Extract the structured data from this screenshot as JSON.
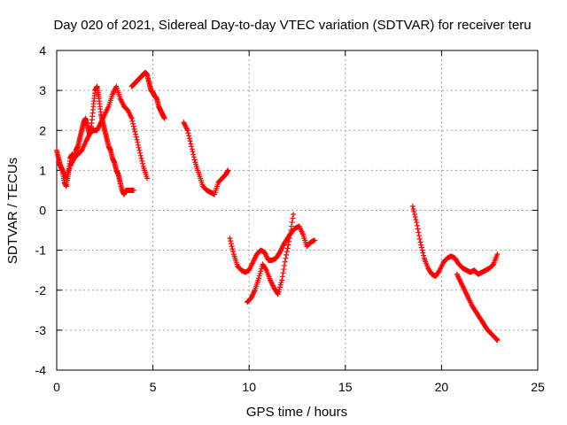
{
  "chart_data": {
    "type": "scatter",
    "title": "Day 020 of 2021, Sidereal Day-to-day VTEC variation (SDTVAR) for receiver teru",
    "xlabel": "GPS time / hours",
    "ylabel": "SDTVAR / TECUs",
    "xlim": [
      0,
      25
    ],
    "ylim": [
      -4,
      4
    ],
    "xticks": [
      0,
      5,
      10,
      15,
      20,
      25
    ],
    "yticks": [
      -4,
      -3,
      -2,
      -1,
      0,
      1,
      2,
      3,
      4
    ],
    "xtick_labels": [
      "0",
      "5",
      "10",
      "15",
      "20",
      "25"
    ],
    "ytick_labels": [
      "-4",
      "-3",
      "-2",
      "-1",
      "0",
      "1",
      "2",
      "3",
      "4"
    ],
    "grid": true,
    "marker": "+",
    "color": "#ff0000",
    "series": [
      {
        "name": "track-1",
        "x": [
          0.0,
          0.1,
          0.2,
          0.3,
          0.4,
          0.5,
          0.6,
          0.7,
          0.8,
          0.9,
          1.0,
          1.1,
          1.2,
          1.3,
          1.4,
          1.5,
          1.6,
          1.7,
          1.8,
          1.9,
          2.0,
          2.1,
          2.2,
          2.3,
          2.4,
          2.5,
          2.6,
          2.7,
          2.8,
          2.9,
          3.0,
          3.1,
          3.2,
          3.3,
          3.4,
          3.5,
          3.6,
          3.7,
          3.8,
          3.9,
          4.0
        ],
        "y": [
          1.5,
          1.3,
          1.1,
          1.0,
          0.7,
          0.6,
          0.9,
          1.3,
          1.4,
          1.3,
          1.5,
          1.6,
          1.8,
          2.0,
          2.2,
          2.3,
          2.1,
          1.9,
          2.1,
          2.6,
          3.0,
          3.1,
          2.8,
          2.4,
          2.2,
          2.0,
          1.8,
          1.6,
          1.5,
          1.3,
          1.2,
          1.0,
          0.9,
          0.7,
          0.5,
          0.4,
          0.5,
          0.5,
          0.5,
          0.5,
          0.5
        ]
      },
      {
        "name": "track-2",
        "x": [
          0.1,
          0.3,
          0.5,
          0.7,
          0.9,
          1.1,
          1.3,
          1.5,
          1.7,
          1.9,
          2.1,
          2.3,
          2.5,
          2.7,
          2.9,
          3.1,
          3.3,
          3.5,
          3.7,
          3.9,
          4.1,
          4.3,
          4.5,
          4.7
        ],
        "y": [
          1.2,
          1.0,
          0.8,
          1.1,
          1.3,
          1.4,
          1.5,
          1.7,
          1.9,
          2.0,
          2.0,
          2.2,
          2.4,
          2.6,
          2.9,
          3.1,
          2.8,
          2.6,
          2.5,
          2.3,
          1.9,
          1.5,
          1.1,
          0.8
        ]
      },
      {
        "name": "track-3",
        "x": [
          3.9,
          4.0,
          4.1,
          4.2,
          4.3,
          4.4,
          4.5,
          4.6,
          4.7,
          4.8,
          4.9,
          5.0,
          5.1,
          5.2,
          5.3,
          5.4,
          5.5,
          5.6
        ],
        "y": [
          3.1,
          3.15,
          3.2,
          3.25,
          3.3,
          3.35,
          3.4,
          3.45,
          3.4,
          3.2,
          3.0,
          2.95,
          2.85,
          2.8,
          2.6,
          2.5,
          2.4,
          2.3
        ]
      },
      {
        "name": "track-4",
        "x": [
          6.6,
          6.8,
          7.0,
          7.2,
          7.4,
          7.6,
          7.8,
          8.0,
          8.2,
          8.4,
          8.6,
          8.8,
          8.9
        ],
        "y": [
          2.2,
          2.0,
          1.6,
          1.2,
          0.9,
          0.6,
          0.5,
          0.45,
          0.4,
          0.7,
          0.8,
          0.9,
          1.0
        ]
      },
      {
        "name": "track-5",
        "x": [
          9.0,
          9.2,
          9.4,
          9.6,
          9.8,
          10.0,
          10.2,
          10.4,
          10.6,
          10.8,
          11.0,
          11.2,
          11.4,
          11.6,
          11.8,
          12.0,
          12.2,
          12.4,
          12.6,
          12.8,
          13.0,
          13.2,
          13.4
        ],
        "y": [
          -0.7,
          -1.1,
          -1.4,
          -1.5,
          -1.55,
          -1.5,
          -1.3,
          -1.1,
          -1.0,
          -1.05,
          -1.25,
          -1.25,
          -1.2,
          -1.05,
          -0.85,
          -0.7,
          -0.55,
          -0.45,
          -0.4,
          -0.6,
          -0.9,
          -0.8,
          -0.75
        ]
      },
      {
        "name": "track-6",
        "x": [
          9.9,
          10.1,
          10.3,
          10.5,
          10.7,
          10.9,
          11.1,
          11.3,
          11.5,
          11.7,
          11.9,
          12.1,
          12.3
        ],
        "y": [
          -2.3,
          -2.2,
          -2.0,
          -1.7,
          -1.35,
          -1.5,
          -1.75,
          -1.95,
          -2.1,
          -1.75,
          -1.2,
          -0.7,
          -0.1
        ]
      },
      {
        "name": "track-7",
        "x": [
          18.5,
          18.7,
          18.9,
          19.1,
          19.3,
          19.5,
          19.7,
          19.9,
          20.1,
          20.3,
          20.5,
          20.7,
          20.9,
          21.1,
          21.3,
          21.5,
          21.7,
          21.9,
          22.1,
          22.3,
          22.5,
          22.7,
          22.9
        ],
        "y": [
          0.1,
          -0.3,
          -0.8,
          -1.2,
          -1.45,
          -1.6,
          -1.65,
          -1.5,
          -1.3,
          -1.2,
          -1.15,
          -1.2,
          -1.35,
          -1.45,
          -1.5,
          -1.55,
          -1.5,
          -1.6,
          -1.55,
          -1.5,
          -1.45,
          -1.35,
          -1.1
        ]
      },
      {
        "name": "track-8",
        "x": [
          20.8,
          21.0,
          21.2,
          21.4,
          21.6,
          21.8,
          22.0,
          22.2,
          22.4,
          22.6,
          22.8,
          22.9
        ],
        "y": [
          -1.6,
          -1.8,
          -2.0,
          -2.2,
          -2.4,
          -2.55,
          -2.7,
          -2.85,
          -3.0,
          -3.1,
          -3.2,
          -3.25
        ]
      }
    ]
  }
}
